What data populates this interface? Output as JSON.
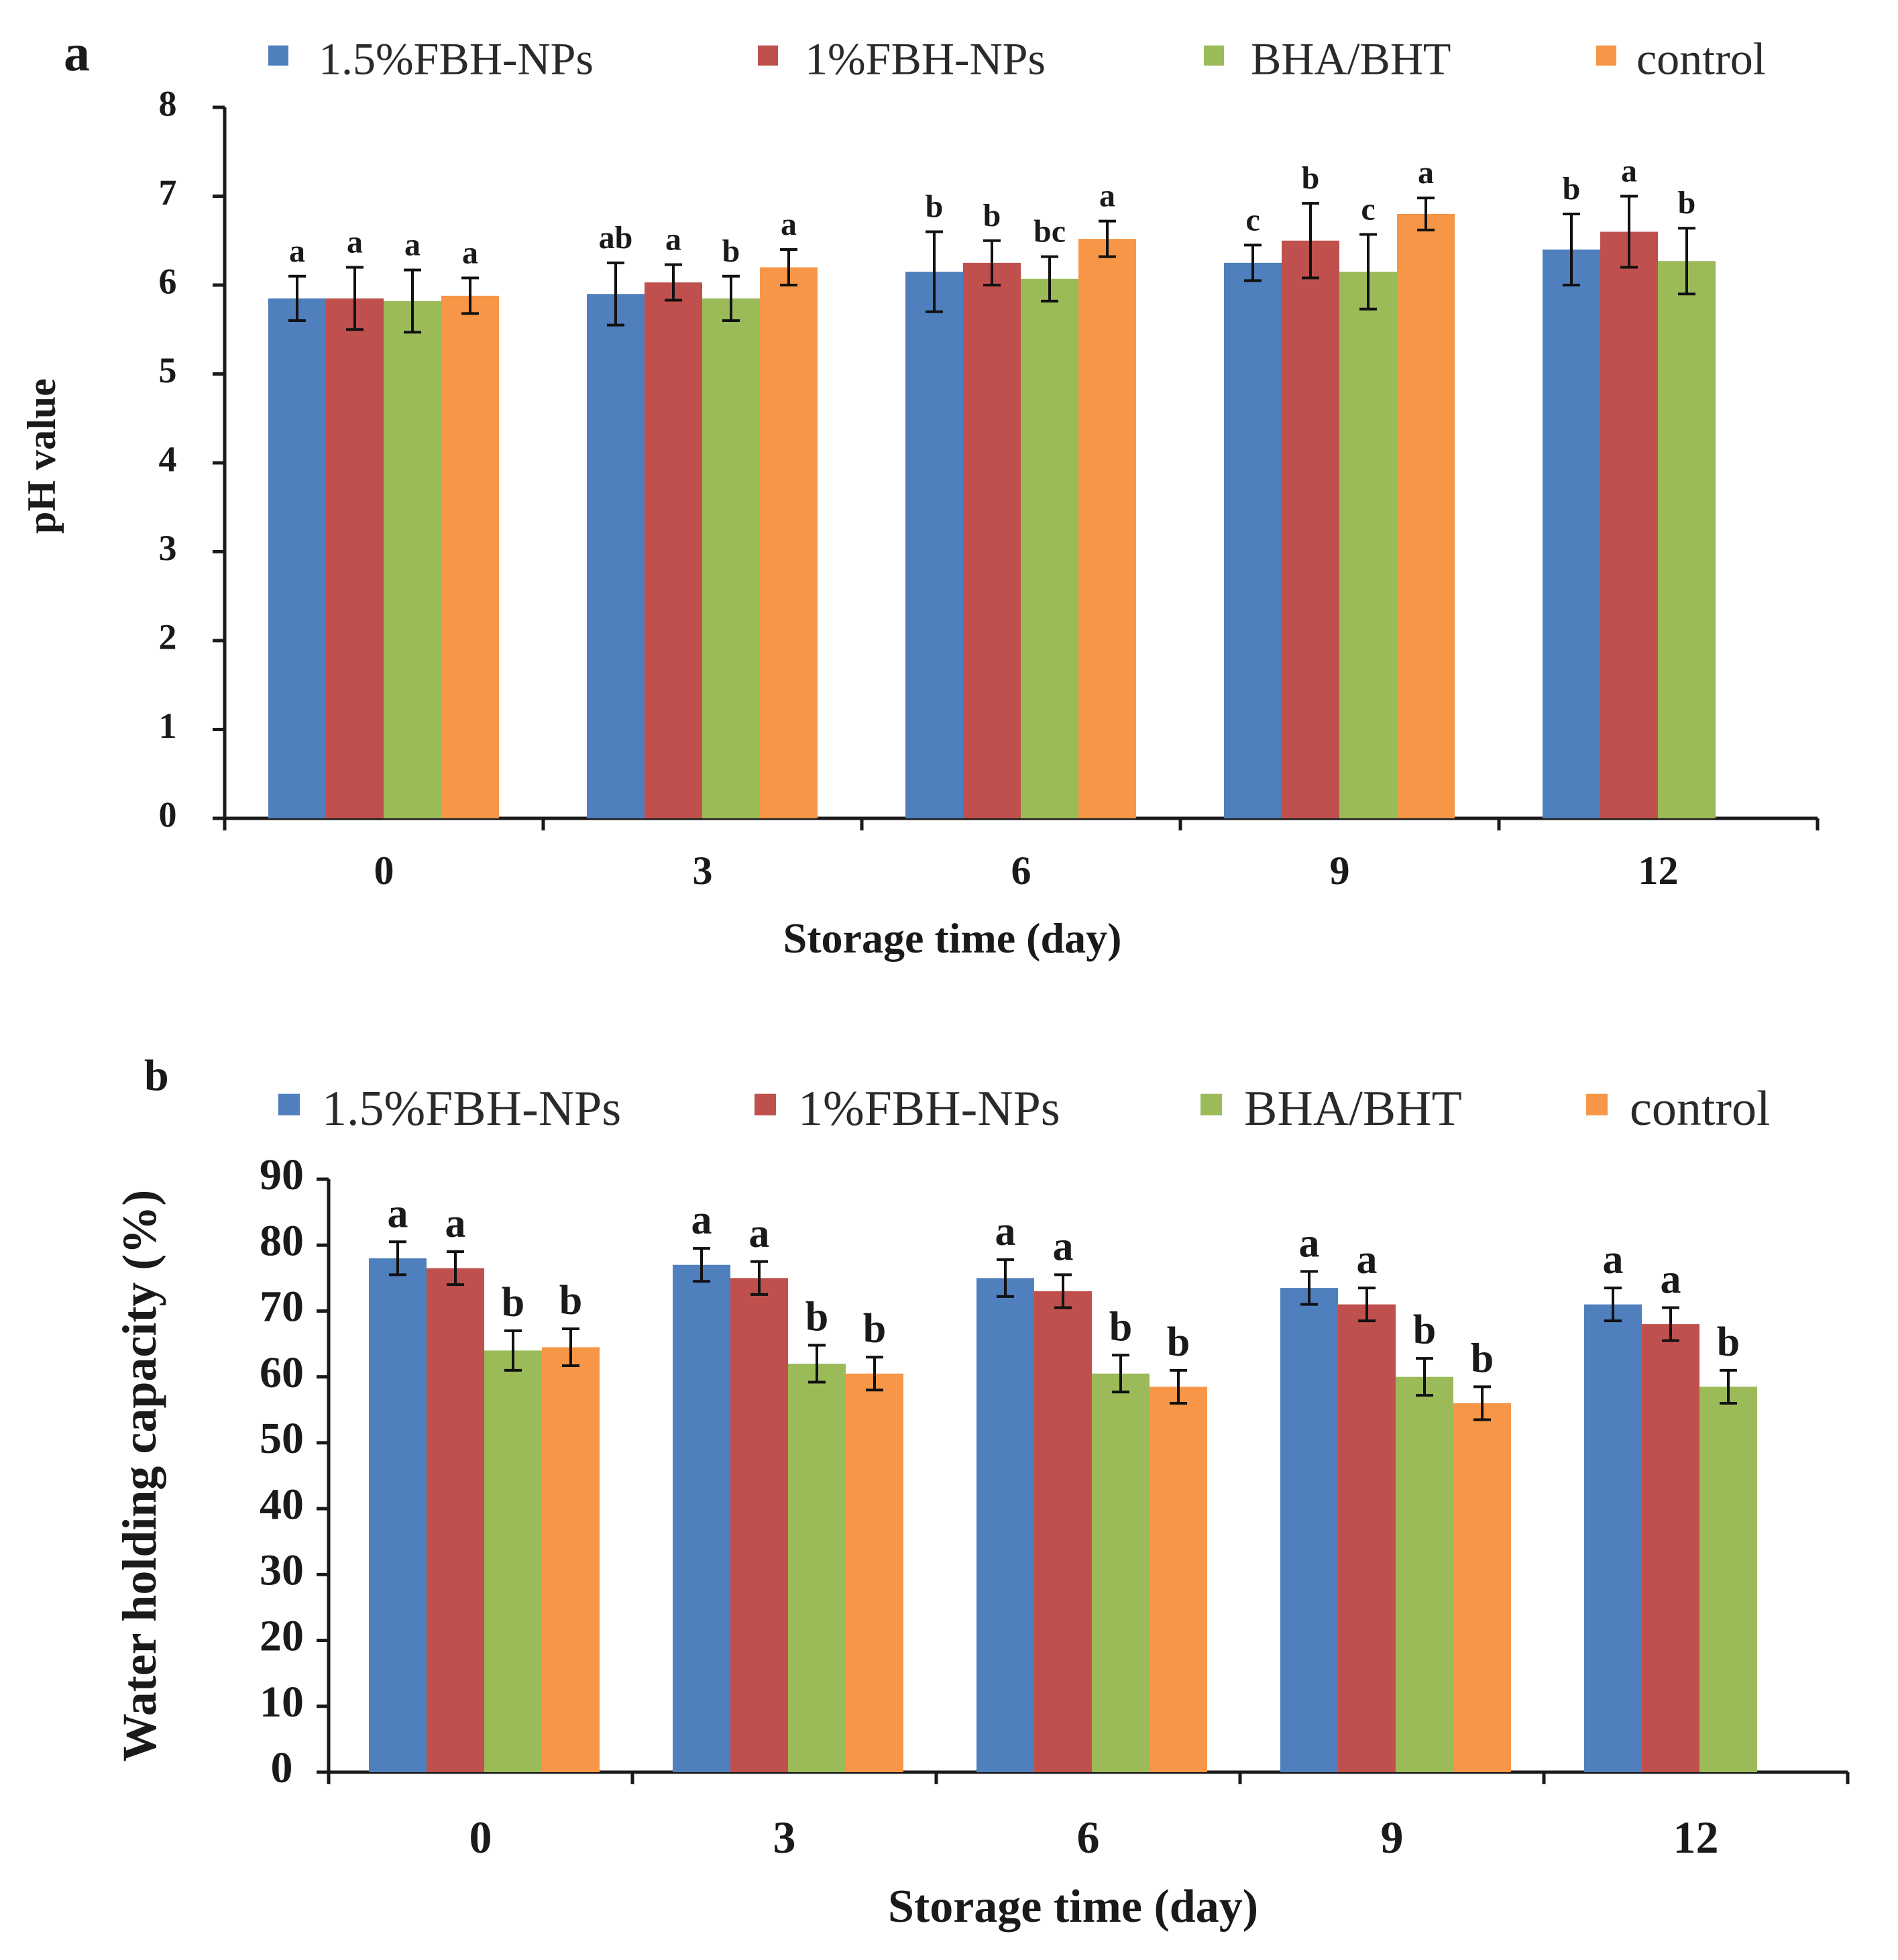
{
  "colors": {
    "series1": "#4f7fbd",
    "series2": "#c0504d",
    "series3": "#9bbb59",
    "series4": "#f79646",
    "axis": "#1a1a1a"
  },
  "chart_data": [
    {
      "type": "bar",
      "panel_label": "a",
      "legend_position": "top",
      "categories": [
        "0",
        "3",
        "6",
        "9",
        "12"
      ],
      "xlabel": "Storage time  (day)",
      "ylabel": "pH value",
      "ylim": [
        0,
        8
      ],
      "yticks": [
        "0",
        "1",
        "2",
        "3",
        "4",
        "5",
        "6",
        "7",
        "8"
      ],
      "series": [
        {
          "name": "1.5%FBH-NPs",
          "values": [
            5.85,
            5.9,
            6.15,
            6.25,
            6.4
          ],
          "errors": [
            0.25,
            0.35,
            0.45,
            0.2,
            0.4
          ],
          "letters": [
            "a",
            "ab",
            "b",
            "c",
            "b"
          ]
        },
        {
          "name": "1%FBH-NPs",
          "values": [
            5.85,
            6.03,
            6.25,
            6.5,
            6.6
          ],
          "errors": [
            0.35,
            0.2,
            0.25,
            0.42,
            0.4
          ],
          "letters": [
            "a",
            "a",
            "b",
            "b",
            "a"
          ]
        },
        {
          "name": "BHA/BHT",
          "values": [
            5.82,
            5.85,
            6.07,
            6.15,
            6.27
          ],
          "errors": [
            0.35,
            0.25,
            0.25,
            0.42,
            0.37
          ],
          "letters": [
            "a",
            "b",
            "bc",
            "c",
            "b"
          ]
        },
        {
          "name": "control",
          "values": [
            5.88,
            6.2,
            6.52,
            6.8,
            null
          ],
          "errors": [
            0.2,
            0.2,
            0.2,
            0.18,
            null
          ],
          "letters": [
            "a",
            "a",
            "a",
            "a",
            ""
          ]
        }
      ]
    },
    {
      "type": "bar",
      "panel_label": "b",
      "legend_position": "top",
      "categories": [
        "0",
        "3",
        "6",
        "9",
        "12"
      ],
      "xlabel": "Storage time  (day)",
      "ylabel": "Water holding capacity (%)",
      "ylim": [
        0,
        90
      ],
      "yticks": [
        "0",
        "10",
        "20",
        "30",
        "40",
        "50",
        "60",
        "70",
        "80",
        "90"
      ],
      "series": [
        {
          "name": "1.5%FBH-NPs",
          "values": [
            78,
            77,
            75,
            73.5,
            71
          ],
          "errors": [
            2.5,
            2.5,
            2.8,
            2.5,
            2.5
          ],
          "letters": [
            "a",
            "a",
            "a",
            "a",
            "a"
          ]
        },
        {
          "name": "1%FBH-NPs",
          "values": [
            76.5,
            75,
            73,
            71,
            68
          ],
          "errors": [
            2.5,
            2.5,
            2.5,
            2.5,
            2.5
          ],
          "letters": [
            "a",
            "a",
            "a",
            "a",
            "a"
          ]
        },
        {
          "name": "BHA/BHT",
          "values": [
            64,
            62,
            60.5,
            60,
            58.5
          ],
          "errors": [
            3,
            2.8,
            2.8,
            2.8,
            2.5
          ],
          "letters": [
            "b",
            "b",
            "b",
            "b",
            "b"
          ]
        },
        {
          "name": "control",
          "values": [
            64.5,
            60.5,
            58.5,
            56,
            null
          ],
          "errors": [
            2.8,
            2.5,
            2.5,
            2.5,
            null
          ],
          "letters": [
            "b",
            "b",
            "b",
            "b",
            ""
          ]
        }
      ]
    }
  ]
}
